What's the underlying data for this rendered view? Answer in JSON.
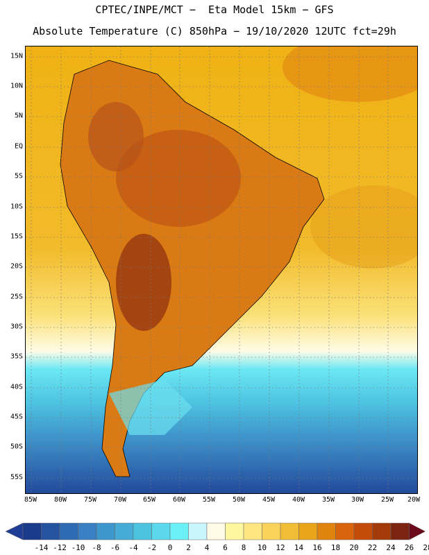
{
  "header": {
    "title_line1": "CPTEC/INPE/MCT −  Eta Model 15km − GFS",
    "title_line2": "Absolute Temperature (C) 850hPa − 19/10/2020 12UTC fct=29h"
  },
  "map": {
    "lat_labels": [
      "15N",
      "10N",
      "5N",
      "EQ",
      "5S",
      "10S",
      "15S",
      "20S",
      "25S",
      "30S",
      "35S",
      "40S",
      "45S",
      "50S",
      "55S"
    ],
    "lon_labels": [
      "85W",
      "80W",
      "75W",
      "70W",
      "65W",
      "60W",
      "55W",
      "50W",
      "45W",
      "40W",
      "35W",
      "30W",
      "25W",
      "20W"
    ]
  },
  "colorbar": {
    "labels": [
      "-14",
      "-12",
      "-10",
      "-8",
      "-6",
      "-4",
      "-2",
      "0",
      "2",
      "4",
      "6",
      "8",
      "10",
      "12",
      "14",
      "16",
      "18",
      "20",
      "22",
      "24",
      "26",
      "28"
    ],
    "colors": [
      "#1a3a8a",
      "#2553a0",
      "#2d6ab4",
      "#3a7fc2",
      "#3d97cc",
      "#44acd6",
      "#4cc4e0",
      "#5bd8ec",
      "#6cf0f8",
      "#c8f6fc",
      "#fffbe6",
      "#fff6a0",
      "#ffe680",
      "#fcd35a",
      "#f2bd36",
      "#eaa51a",
      "#e0840f",
      "#d8650b",
      "#c44c0a",
      "#a43a0a",
      "#7c2410"
    ],
    "under_color": "#1f3d94",
    "over_color": "#6a0a1a"
  }
}
